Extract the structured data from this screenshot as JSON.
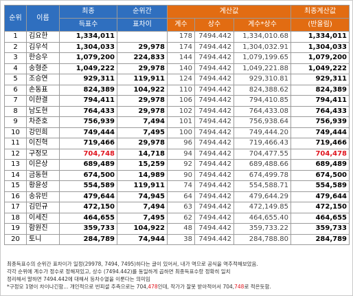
{
  "headers": {
    "rank": "순위",
    "name": "이름",
    "final_votes_1": "최종",
    "final_votes_2": "득표수",
    "gap_1": "순위간",
    "gap_2": "표차이",
    "calc": "계산값",
    "coef": "계수",
    "const": "상수",
    "coef_const": "계수*상수",
    "final_calc_1": "최종계산값",
    "final_calc_2": "(반올림)"
  },
  "rows": [
    {
      "rank": "1",
      "name": "김요한",
      "votes": "1,334,011",
      "gap": "",
      "coef": "178",
      "const": "7494.442",
      "product": "1,334,010.68",
      "final": "1,334,011"
    },
    {
      "rank": "2",
      "name": "김우석",
      "votes": "1,304,033",
      "gap": "29,978",
      "coef": "174",
      "const": "7494.442",
      "product": "1,304,032.91",
      "final": "1,304,033"
    },
    {
      "rank": "3",
      "name": "한승우",
      "votes": "1,079,200",
      "gap": "224,833",
      "coef": "144",
      "const": "7494.442",
      "product": "1,079,199.65",
      "final": "1,079,200"
    },
    {
      "rank": "4",
      "name": "송형준",
      "votes": "1,049,222",
      "gap": "29,978",
      "coef": "140",
      "const": "7494.442",
      "product": "1,049,221.88",
      "final": "1,049,222"
    },
    {
      "rank": "5",
      "name": "조승연",
      "votes": "929,311",
      "gap": "119,911",
      "coef": "124",
      "const": "7494.442",
      "product": "929,310.81",
      "final": "929,311"
    },
    {
      "rank": "6",
      "name": "손동표",
      "votes": "824,389",
      "gap": "104,922",
      "coef": "110",
      "const": "7494.442",
      "product": "824,388.62",
      "final": "824,389"
    },
    {
      "rank": "7",
      "name": "이한결",
      "votes": "794,411",
      "gap": "29,978",
      "coef": "106",
      "const": "7494.442",
      "product": "794,410.85",
      "final": "794,411"
    },
    {
      "rank": "8",
      "name": "남도현",
      "votes": "764,433",
      "gap": "29,978",
      "coef": "102",
      "const": "7494.442",
      "product": "764,433.08",
      "final": "764,433"
    },
    {
      "rank": "9",
      "name": "차준호",
      "votes": "756,939",
      "gap": "7,494",
      "coef": "101",
      "const": "7494.442",
      "product": "756,938.64",
      "final": "756,939"
    },
    {
      "rank": "10",
      "name": "강민희",
      "votes": "749,444",
      "gap": "7,495",
      "coef": "100",
      "const": "7494.442",
      "product": "749,444.20",
      "final": "749,444"
    },
    {
      "rank": "11",
      "name": "이진혁",
      "votes": "719,466",
      "gap": "29,978",
      "coef": "96",
      "const": "7494.442",
      "product": "719,466.43",
      "final": "719,466"
    },
    {
      "rank": "12",
      "name": "구정모",
      "votes": "704,748",
      "gap": "14,718",
      "coef": "94",
      "const": "7494.442",
      "product": "704,477.55",
      "final": "704,478",
      "highlight": true
    },
    {
      "rank": "13",
      "name": "이은상",
      "votes": "689,489",
      "gap": "15,259",
      "coef": "92",
      "const": "7494.442",
      "product": "689,488.66",
      "final": "689,489"
    },
    {
      "rank": "14",
      "name": "금동현",
      "votes": "674,500",
      "gap": "14,989",
      "coef": "90",
      "const": "7494.442",
      "product": "674,499.78",
      "final": "674,500"
    },
    {
      "rank": "15",
      "name": "황윤성",
      "votes": "554,589",
      "gap": "119,911",
      "coef": "74",
      "const": "7494.442",
      "product": "554,588.71",
      "final": "554,589"
    },
    {
      "rank": "16",
      "name": "송유빈",
      "votes": "479,644",
      "gap": "74,945",
      "coef": "64",
      "const": "7494.442",
      "product": "479,644.29",
      "final": "479,644"
    },
    {
      "rank": "17",
      "name": "김민규",
      "votes": "472,150",
      "gap": "7,494",
      "coef": "63",
      "const": "7494.442",
      "product": "472,149.85",
      "final": "472,150"
    },
    {
      "rank": "18",
      "name": "이세진",
      "votes": "464,655",
      "gap": "7,495",
      "coef": "62",
      "const": "7494.442",
      "product": "464,655.40",
      "final": "464,655"
    },
    {
      "rank": "19",
      "name": "함원진",
      "votes": "359,733",
      "gap": "104,922",
      "coef": "48",
      "const": "7494.442",
      "product": "359,733.22",
      "final": "359,733"
    },
    {
      "rank": "20",
      "name": "토니",
      "votes": "284,789",
      "gap": "74,944",
      "coef": "38",
      "const": "7494.442",
      "product": "284,788.80",
      "final": "284,789"
    }
  ],
  "notes": {
    "line1": "최종득표수의 순위간 표차이가 일정(29978, 7494, 7495)하다는 글이 있어서, 내가 역으로 공식을 역추적해보았음.",
    "line2": "각각 순위에 계수가 정수로 정해져있고, 상수 (7494.442)를 동일하게 곱하면 최종득표수랑 정확히 일치",
    "line3": "정리해서 말하면 7494.442에 대해서 등차수열을 이룬다는 의미임",
    "line4_a": "*구정모 1명이  차이나긴함... 개인적으로 빈피셜 추측으로는 704,",
    "line4_b": "478",
    "line4_c": "인데, 작가가 잘못 받아적어서 704,",
    "line4_d": "748",
    "line4_e": "로 적은듯함."
  }
}
